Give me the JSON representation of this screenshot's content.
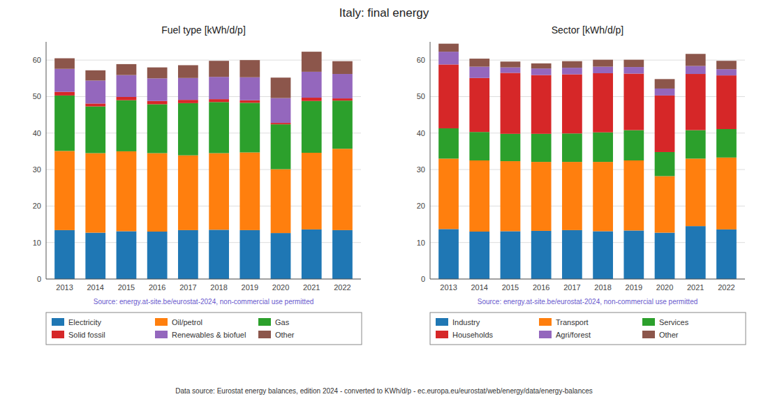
{
  "title": "Italy: final energy",
  "annotations": [
    "Data source: Eurostat energy balances, edition 2024 - converted to KWh/d/p - ec.europa.eu/eurostat/web/energy/data/energy-balances"
  ],
  "chart_data": [
    {
      "type": "bar",
      "stacked": true,
      "grid": true,
      "legend": "bottom",
      "title": "Fuel type [kWh/d/p]",
      "annotations": [
        "Source: energy.at-site.be/eurostat-2024, non-commercial use permitted"
      ],
      "categories": [
        "2013",
        "2014",
        "2015",
        "2016",
        "2017",
        "2018",
        "2019",
        "2020",
        "2021",
        "2022"
      ],
      "series": [
        {
          "name": "Electricity",
          "color": "#1f77b4",
          "values": [
            13.4,
            12.7,
            13.1,
            13.0,
            13.4,
            13.5,
            13.4,
            12.6,
            13.6,
            13.4
          ]
        },
        {
          "name": "Oil/petrol",
          "color": "#ff7f0e",
          "values": [
            21.7,
            21.8,
            21.9,
            21.5,
            20.5,
            21.0,
            21.3,
            17.5,
            21.0,
            22.3
          ]
        },
        {
          "name": "Gas",
          "color": "#2ca02c",
          "values": [
            15.2,
            12.8,
            14.0,
            13.4,
            14.3,
            14.0,
            13.6,
            12.3,
            14.2,
            13.2
          ]
        },
        {
          "name": "Solid fossil",
          "color": "#d62728",
          "values": [
            1.0,
            0.8,
            0.9,
            0.9,
            0.9,
            0.8,
            0.7,
            0.4,
            0.9,
            0.6
          ]
        },
        {
          "name": "Renewables & biofuel",
          "color": "#9467bd",
          "values": [
            6.3,
            6.3,
            6.0,
            6.2,
            6.0,
            6.1,
            6.3,
            6.8,
            7.1,
            6.7
          ]
        },
        {
          "name": "Other",
          "color": "#8c564b",
          "values": [
            2.9,
            2.8,
            3.0,
            3.0,
            3.5,
            4.4,
            4.7,
            5.6,
            5.5,
            3.5
          ]
        }
      ],
      "ylim": [
        0,
        65
      ],
      "yticks": [
        0,
        10,
        20,
        30,
        40,
        50,
        60
      ]
    },
    {
      "type": "bar",
      "stacked": true,
      "grid": true,
      "legend": "bottom",
      "title": "Sector [kWh/d/p]",
      "annotations": [
        "Source: energy.at-site.be/eurostat-2024, non-commercial use permitted"
      ],
      "categories": [
        "2013",
        "2014",
        "2015",
        "2016",
        "2017",
        "2018",
        "2019",
        "2020",
        "2021",
        "2022"
      ],
      "series": [
        {
          "name": "Industry",
          "color": "#1f77b4",
          "values": [
            13.7,
            13.0,
            13.1,
            13.2,
            13.4,
            13.1,
            13.3,
            12.7,
            14.5,
            13.6
          ]
        },
        {
          "name": "Transport",
          "color": "#ff7f0e",
          "values": [
            19.3,
            19.5,
            19.2,
            18.9,
            18.7,
            19.0,
            19.2,
            15.5,
            18.5,
            19.7
          ]
        },
        {
          "name": "Services",
          "color": "#2ca02c",
          "values": [
            8.3,
            7.8,
            7.5,
            7.7,
            7.8,
            8.1,
            8.3,
            6.6,
            7.8,
            7.8
          ]
        },
        {
          "name": "Households",
          "color": "#d62728",
          "values": [
            17.5,
            14.8,
            16.7,
            16.1,
            16.2,
            16.2,
            15.5,
            15.5,
            15.4,
            14.7
          ]
        },
        {
          "name": "Agri/forest",
          "color": "#9467bd",
          "values": [
            3.5,
            3.1,
            1.5,
            1.8,
            1.8,
            1.8,
            1.8,
            1.9,
            2.2,
            1.7
          ]
        },
        {
          "name": "Other",
          "color": "#8c564b",
          "values": [
            2.2,
            2.2,
            1.6,
            1.4,
            1.8,
            1.9,
            2.0,
            2.6,
            3.3,
            2.3
          ]
        }
      ],
      "ylim": [
        0,
        65
      ],
      "yticks": [
        0,
        10,
        20,
        30,
        40,
        50,
        60
      ]
    }
  ]
}
